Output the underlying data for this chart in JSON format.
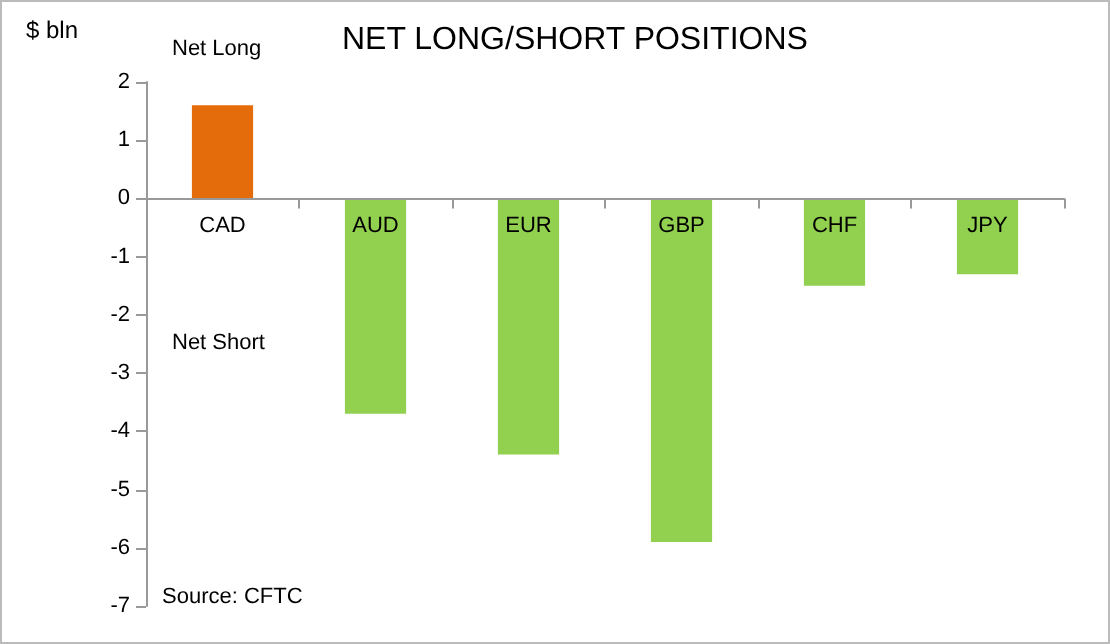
{
  "chart_data": {
    "type": "bar",
    "title": "NET LONG/SHORT POSITIONS",
    "ylabel": "$ bln",
    "categories": [
      "CAD",
      "AUD",
      "EUR",
      "GBP",
      "CHF",
      "JPY"
    ],
    "values": [
      1.6,
      -3.7,
      -4.4,
      -5.9,
      -1.5,
      -1.3
    ],
    "colors": [
      "#e46c0a",
      "#92d050",
      "#92d050",
      "#92d050",
      "#92d050",
      "#92d050"
    ],
    "ylim": [
      -7,
      2
    ],
    "yticks": [
      -7,
      -6,
      -5,
      -4,
      -3,
      -2,
      -1,
      0,
      1,
      2
    ],
    "annotations": [
      "Net Long",
      "Net Short",
      "Source: CFTC"
    ]
  }
}
